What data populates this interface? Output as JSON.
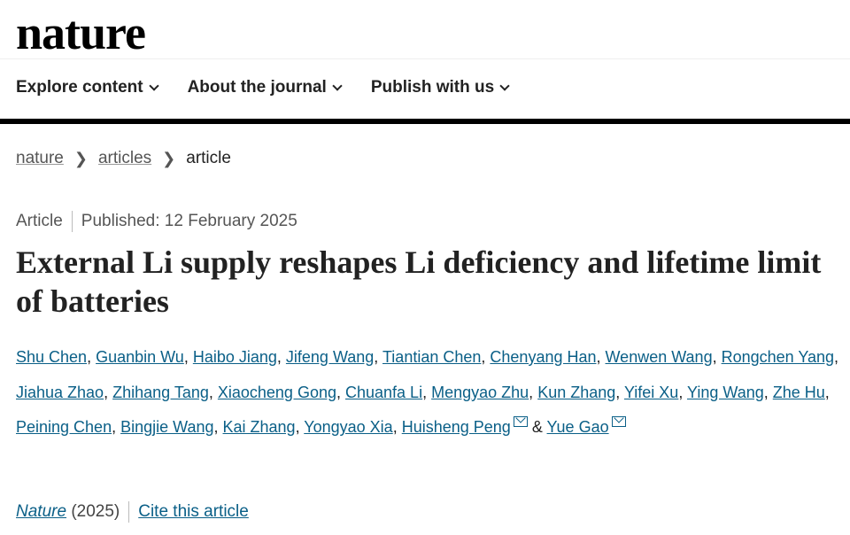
{
  "header": {
    "logo": "nature",
    "nav": [
      "Explore content",
      "About the journal",
      "Publish with us"
    ]
  },
  "breadcrumb": {
    "items": [
      "nature",
      "articles"
    ],
    "current": "article"
  },
  "meta": {
    "type": "Article",
    "published": "Published: 12 February 2025"
  },
  "title": "External Li supply reshapes Li deficiency and lifetime limit of batteries",
  "authors": [
    "Shu Chen",
    "Guanbin Wu",
    "Haibo Jiang",
    "Jifeng Wang",
    "Tiantian Chen",
    "Chenyang Han",
    "Wenwen Wang",
    "Rongchen Yang",
    "Jiahua Zhao",
    "Zhihang Tang",
    "Xiaocheng Gong",
    "Chuanfa Li",
    "Mengyao Zhu",
    "Kun Zhang",
    "Yifei Xu",
    "Ying Wang",
    "Zhe Hu",
    "Peining Chen",
    "Bingjie Wang",
    "Kai Zhang",
    "Yongyao Xia",
    "Huisheng Peng"
  ],
  "last_author": "Yue Gao",
  "amp": "&",
  "citation": {
    "journal": "Nature",
    "year": "(2025)",
    "cite_link": "Cite this article"
  },
  "colors": {
    "link": "#0a5f87"
  }
}
